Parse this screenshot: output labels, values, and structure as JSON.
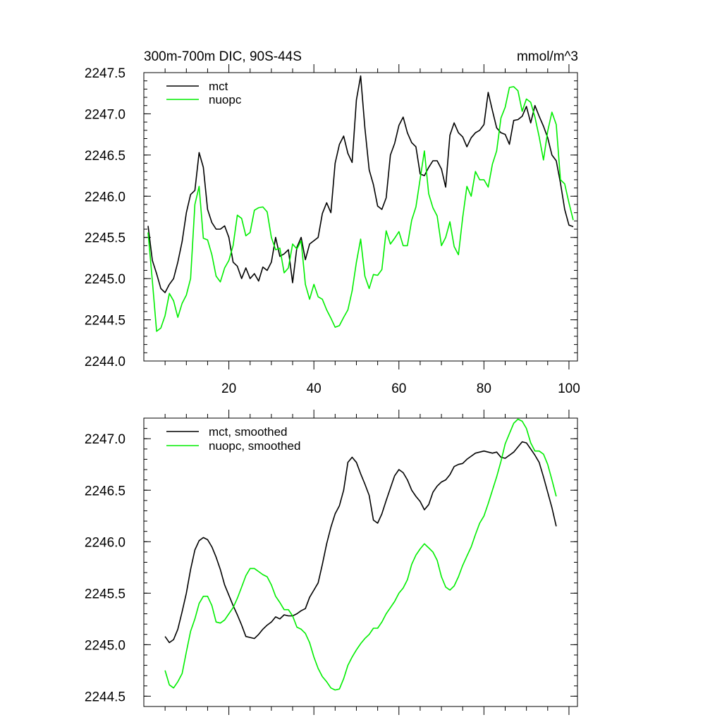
{
  "colors": {
    "mct": "#000000",
    "nuopc": "#00ee00"
  },
  "chart_data": [
    {
      "type": "line",
      "title": "300m-700m DIC, 90S-44S",
      "units": "mmol/m^3",
      "xlabel": "",
      "ylabel": "",
      "xlim": [
        0,
        102
      ],
      "ylim": [
        2244.0,
        2247.5
      ],
      "yticks": [
        2244.0,
        2244.5,
        2245.0,
        2245.5,
        2246.0,
        2246.5,
        2247.0,
        2247.5
      ],
      "ytick_labels": [
        "2244.0",
        "2244.5",
        "2245.0",
        "2245.5",
        "2246.0",
        "2246.5",
        "2247.0",
        "2247.5"
      ],
      "xticks": [
        20,
        40,
        60,
        80,
        100
      ],
      "xtick_labels": [
        "20",
        "40",
        "60",
        "80",
        "100"
      ],
      "legend_position": "top-left",
      "series": [
        {
          "name": "mct",
          "color_key": "mct",
          "x": [
            1,
            2,
            3,
            4,
            5,
            6,
            7,
            8,
            9,
            10,
            11,
            12,
            13,
            14,
            15,
            16,
            17,
            18,
            19,
            20,
            21,
            22,
            23,
            24,
            25,
            26,
            27,
            28,
            29,
            30,
            31,
            32,
            33,
            34,
            35,
            36,
            37,
            38,
            39,
            40,
            41,
            42,
            43,
            44,
            45,
            46,
            47,
            48,
            49,
            50,
            51,
            52,
            53,
            54,
            55,
            56,
            57,
            58,
            59,
            60,
            61,
            62,
            63,
            64,
            65,
            66,
            67,
            68,
            69,
            70,
            71,
            72,
            73,
            74,
            75,
            76,
            77,
            78,
            79,
            80,
            81,
            82,
            83,
            84,
            85,
            86,
            87,
            88,
            89,
            90,
            91,
            92,
            93,
            94,
            95,
            96,
            97,
            98,
            99,
            100,
            101
          ],
          "y": [
            2245.64,
            2245.22,
            2245.06,
            2244.88,
            2244.83,
            2244.93,
            2245.0,
            2245.2,
            2245.45,
            2245.8,
            2246.02,
            2246.07,
            2246.53,
            2246.35,
            2245.84,
            2245.68,
            2245.6,
            2245.6,
            2245.64,
            2245.5,
            2245.2,
            2245.15,
            2245.0,
            2245.13,
            2245.0,
            2245.06,
            2244.97,
            2245.14,
            2245.1,
            2245.2,
            2245.5,
            2245.27,
            2245.3,
            2245.35,
            2244.95,
            2245.38,
            2245.5,
            2245.23,
            2245.42,
            2245.46,
            2245.5,
            2245.79,
            2245.92,
            2245.8,
            2246.4,
            2246.63,
            2246.73,
            2246.52,
            2246.41,
            2247.17,
            2247.46,
            2246.83,
            2246.32,
            2246.14,
            2245.88,
            2245.84,
            2245.98,
            2246.5,
            2246.64,
            2246.86,
            2246.96,
            2246.77,
            2246.65,
            2246.6,
            2246.27,
            2246.25,
            2246.35,
            2246.43,
            2246.43,
            2246.33,
            2246.11,
            2246.74,
            2246.89,
            2246.77,
            2246.72,
            2246.6,
            2246.71,
            2246.77,
            2246.8,
            2246.87,
            2247.26,
            2247.04,
            2246.83,
            2246.77,
            2246.75,
            2246.63,
            2246.92,
            2246.93,
            2246.97,
            2247.09,
            2246.89,
            2247.1,
            2246.97,
            2246.85,
            2246.71,
            2246.5,
            2246.43,
            2246.16,
            2245.84,
            2245.65,
            2245.63
          ]
        },
        {
          "name": "nuopc",
          "color_key": "nuopc",
          "x": [
            1,
            2,
            3,
            4,
            5,
            6,
            7,
            8,
            9,
            10,
            11,
            12,
            13,
            14,
            15,
            16,
            17,
            18,
            19,
            20,
            21,
            22,
            23,
            24,
            25,
            26,
            27,
            28,
            29,
            30,
            31,
            32,
            33,
            34,
            35,
            36,
            37,
            38,
            39,
            40,
            41,
            42,
            43,
            44,
            45,
            46,
            47,
            48,
            49,
            50,
            51,
            52,
            53,
            54,
            55,
            56,
            57,
            58,
            59,
            60,
            61,
            62,
            63,
            64,
            65,
            66,
            67,
            68,
            69,
            70,
            71,
            72,
            73,
            74,
            75,
            76,
            77,
            78,
            79,
            80,
            81,
            82,
            83,
            84,
            85,
            86,
            87,
            88,
            89,
            90,
            91,
            92,
            93,
            94,
            95,
            96,
            97,
            98,
            99,
            100,
            101
          ],
          "y": [
            2245.56,
            2244.97,
            2244.36,
            2244.4,
            2244.55,
            2244.82,
            2244.73,
            2244.53,
            2244.7,
            2244.8,
            2245.0,
            2245.9,
            2246.12,
            2245.49,
            2245.47,
            2245.29,
            2245.03,
            2244.96,
            2245.13,
            2245.22,
            2245.4,
            2245.77,
            2245.73,
            2245.52,
            2245.56,
            2245.83,
            2245.86,
            2245.87,
            2245.81,
            2245.5,
            2245.35,
            2245.37,
            2245.07,
            2245.13,
            2245.42,
            2245.36,
            2245.46,
            2244.93,
            2244.75,
            2244.93,
            2244.78,
            2244.75,
            2244.62,
            2244.52,
            2244.41,
            2244.43,
            2244.53,
            2244.62,
            2244.85,
            2245.2,
            2245.48,
            2245.03,
            2244.88,
            2245.05,
            2245.04,
            2245.11,
            2245.58,
            2245.42,
            2245.49,
            2245.57,
            2245.4,
            2245.4,
            2245.71,
            2245.87,
            2246.21,
            2246.55,
            2246.03,
            2245.86,
            2245.76,
            2245.4,
            2245.5,
            2245.69,
            2245.39,
            2245.29,
            2245.74,
            2246.12,
            2246.0,
            2246.3,
            2246.2,
            2246.2,
            2246.11,
            2246.39,
            2246.55,
            2246.95,
            2247.08,
            2247.32,
            2247.33,
            2247.28,
            2247.03,
            2247.18,
            2247.14,
            2246.96,
            2246.72,
            2246.44,
            2246.79,
            2247.02,
            2246.87,
            2246.2,
            2246.15,
            2245.92,
            2245.71
          ]
        }
      ]
    },
    {
      "type": "line",
      "title": "",
      "xlabel": "",
      "ylabel": "",
      "xlim": [
        0,
        102
      ],
      "ylim": [
        2244.4,
        2247.2
      ],
      "yticks": [
        2244.5,
        2245.0,
        2245.5,
        2246.0,
        2246.5,
        2247.0
      ],
      "ytick_labels": [
        "2244.5",
        "2245.0",
        "2245.5",
        "2246.0",
        "2246.5",
        "2247.0"
      ],
      "xticks": [
        20,
        40,
        60,
        80,
        100
      ],
      "xtick_labels": [],
      "legend_position": "top-left",
      "series": [
        {
          "name": "mct, smoothed",
          "color_key": "mct",
          "x": [
            5,
            6,
            7,
            8,
            9,
            10,
            11,
            12,
            13,
            14,
            15,
            16,
            17,
            18,
            19,
            20,
            21,
            22,
            23,
            24,
            25,
            26,
            27,
            28,
            29,
            30,
            31,
            32,
            33,
            34,
            35,
            36,
            37,
            38,
            39,
            40,
            41,
            42,
            43,
            44,
            45,
            46,
            47,
            48,
            49,
            50,
            51,
            52,
            53,
            54,
            55,
            56,
            57,
            58,
            59,
            60,
            61,
            62,
            63,
            64,
            65,
            66,
            67,
            68,
            69,
            70,
            71,
            72,
            73,
            74,
            75,
            76,
            77,
            78,
            79,
            80,
            81,
            82,
            83,
            84,
            85,
            86,
            87,
            88,
            89,
            90,
            91,
            92,
            93,
            94,
            95,
            96,
            97
          ],
          "y": [
            2245.08,
            2245.02,
            2245.05,
            2245.15,
            2245.32,
            2245.5,
            2245.73,
            2245.92,
            2246.01,
            2246.04,
            2246.02,
            2245.95,
            2245.85,
            2245.73,
            2245.58,
            2245.48,
            2245.38,
            2245.29,
            2245.19,
            2245.08,
            2245.07,
            2245.06,
            2245.1,
            2245.15,
            2245.19,
            2245.22,
            2245.27,
            2245.25,
            2245.29,
            2245.28,
            2245.28,
            2245.3,
            2245.33,
            2245.35,
            2245.46,
            2245.53,
            2245.6,
            2245.78,
            2245.98,
            2246.14,
            2246.27,
            2246.35,
            2246.5,
            2246.77,
            2246.82,
            2246.77,
            2246.66,
            2246.56,
            2246.45,
            2246.21,
            2246.18,
            2246.27,
            2246.4,
            2246.52,
            2246.64,
            2246.7,
            2246.67,
            2246.6,
            2246.5,
            2246.44,
            2246.39,
            2246.31,
            2246.36,
            2246.48,
            2246.54,
            2246.58,
            2246.6,
            2246.65,
            2246.73,
            2246.75,
            2246.76,
            2246.8,
            2246.83,
            2246.86,
            2246.87,
            2246.88,
            2246.87,
            2246.86,
            2246.87,
            2246.82,
            2246.81,
            2246.84,
            2246.87,
            2246.92,
            2246.97,
            2246.96,
            2246.9,
            2246.84,
            2246.77,
            2246.63,
            2246.48,
            2246.33,
            2246.15
          ]
        },
        {
          "name": "nuopc, smoothed",
          "color_key": "nuopc",
          "x": [
            5,
            6,
            7,
            8,
            9,
            10,
            11,
            12,
            13,
            14,
            15,
            16,
            17,
            18,
            19,
            20,
            21,
            22,
            23,
            24,
            25,
            26,
            27,
            28,
            29,
            30,
            31,
            32,
            33,
            34,
            35,
            36,
            37,
            38,
            39,
            40,
            41,
            42,
            43,
            44,
            45,
            46,
            47,
            48,
            49,
            50,
            51,
            52,
            53,
            54,
            55,
            56,
            57,
            58,
            59,
            60,
            61,
            62,
            63,
            64,
            65,
            66,
            67,
            68,
            69,
            70,
            71,
            72,
            73,
            74,
            75,
            76,
            77,
            78,
            79,
            80,
            81,
            82,
            83,
            84,
            85,
            86,
            87,
            88,
            89,
            90,
            91,
            92,
            93,
            94,
            95,
            96,
            97
          ],
          "y": [
            2244.75,
            2244.61,
            2244.58,
            2244.64,
            2244.72,
            2244.93,
            2245.13,
            2245.25,
            2245.4,
            2245.47,
            2245.47,
            2245.38,
            2245.22,
            2245.21,
            2245.24,
            2245.3,
            2245.36,
            2245.45,
            2245.56,
            2245.67,
            2245.74,
            2245.74,
            2245.71,
            2245.68,
            2245.66,
            2245.58,
            2245.47,
            2245.41,
            2245.34,
            2245.34,
            2245.28,
            2245.17,
            2245.15,
            2245.11,
            2245.02,
            2244.88,
            2244.77,
            2244.69,
            2244.64,
            2244.58,
            2244.56,
            2244.57,
            2244.67,
            2244.8,
            2244.88,
            2244.95,
            2245.01,
            2245.06,
            2245.1,
            2245.16,
            2245.16,
            2245.22,
            2245.3,
            2245.36,
            2245.42,
            2245.5,
            2245.55,
            2245.63,
            2245.78,
            2245.87,
            2245.93,
            2245.98,
            2245.94,
            2245.9,
            2245.82,
            2245.66,
            2245.56,
            2245.53,
            2245.57,
            2245.66,
            2245.77,
            2245.86,
            2245.95,
            2246.07,
            2246.18,
            2246.25,
            2246.37,
            2246.5,
            2246.63,
            2246.78,
            2246.95,
            2247.05,
            2247.15,
            2247.19,
            2247.17,
            2247.1,
            2246.96,
            2246.88,
            2246.88,
            2246.85,
            2246.75,
            2246.6,
            2246.44
          ]
        }
      ]
    }
  ]
}
